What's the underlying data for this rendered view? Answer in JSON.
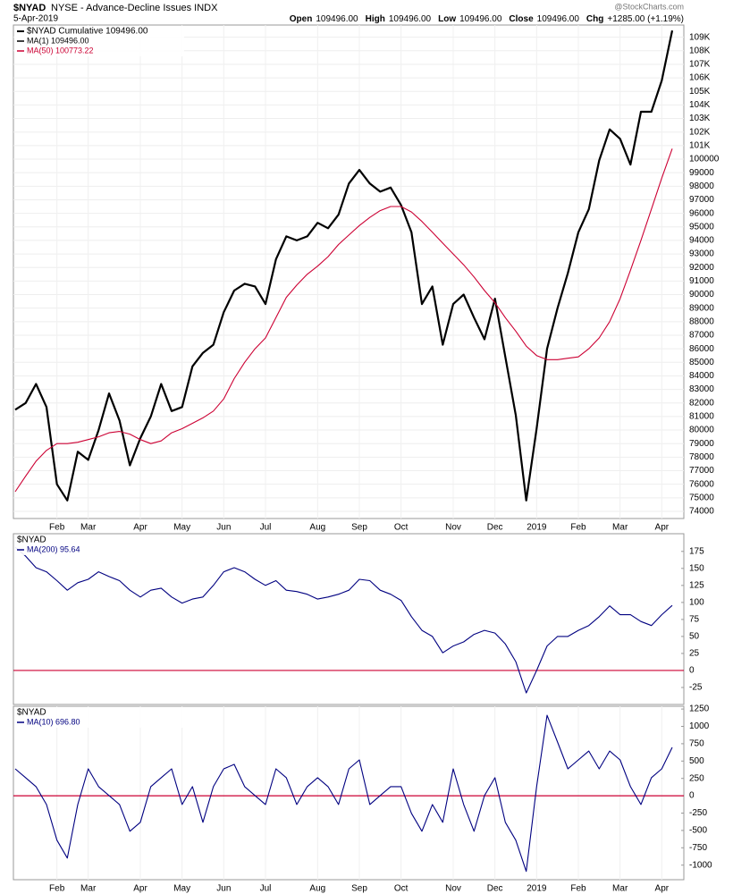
{
  "header": {
    "symbol": "$NYAD",
    "name": "NYSE - Advance-Decline Issues INDX",
    "date": "5-Apr-2019",
    "source": "@StockCharts.com",
    "quote": [
      {
        "label": "Open",
        "text": "109496.00"
      },
      {
        "label": "High",
        "text": "109496.00"
      },
      {
        "label": "Low",
        "text": "109496.00"
      },
      {
        "label": "Close",
        "text": "109496.00"
      },
      {
        "label": "Chg",
        "text": "+1285.00 (+1.19%)"
      }
    ]
  },
  "chart_data": [
    {
      "type": "line",
      "legend_title": "$NYAD Cumulative 109496.00",
      "grid": true,
      "categories": [
        null,
        null,
        null,
        null,
        "Feb",
        null,
        null,
        "Mar",
        null,
        null,
        null,
        null,
        "Apr",
        null,
        null,
        null,
        "May",
        null,
        null,
        null,
        "Jun",
        null,
        null,
        null,
        "Jul",
        null,
        null,
        null,
        null,
        "Aug",
        null,
        null,
        null,
        "Sep",
        null,
        null,
        null,
        "Oct",
        null,
        null,
        null,
        null,
        "Nov",
        null,
        null,
        null,
        "Dec",
        null,
        null,
        null,
        "2019",
        null,
        null,
        null,
        "Feb",
        null,
        null,
        null,
        "Mar",
        null,
        null,
        null,
        "Apr",
        null
      ],
      "series": [
        {
          "name": "MA(1) 109496.00",
          "color": "#000000",
          "values": [
            81500,
            82000,
            83400,
            81700,
            76000,
            74800,
            78400,
            77800,
            80000,
            82700,
            80700,
            77400,
            79400,
            81000,
            83400,
            81400,
            81700,
            84700,
            85700,
            86300,
            88700,
            90300,
            90800,
            90600,
            89300,
            92600,
            94300,
            94000,
            94300,
            95300,
            94900,
            95900,
            98200,
            99200,
            98200,
            97600,
            97900,
            96600,
            94600,
            89300,
            90600,
            86300,
            89300,
            90000,
            88300,
            86700,
            89700,
            85400,
            81100,
            74800,
            80100,
            86000,
            89000,
            91600,
            94600,
            96300,
            99900,
            102200,
            101500,
            99600,
            103500,
            103500,
            105800,
            109496
          ]
        },
        {
          "name": "MA(50) 100773.22",
          "color": "#cc0033",
          "values": [
            75450,
            76600,
            77700,
            78500,
            79000,
            79000,
            79100,
            79300,
            79500,
            79800,
            79900,
            79700,
            79300,
            79000,
            79200,
            79800,
            80100,
            80500,
            80900,
            81400,
            82300,
            83800,
            85000,
            86000,
            86800,
            88300,
            89800,
            90700,
            91500,
            92100,
            92800,
            93700,
            94400,
            95100,
            95700,
            96200,
            96500,
            96500,
            96100,
            95400,
            94600,
            93800,
            93000,
            92200,
            91300,
            90300,
            89400,
            88300,
            87300,
            86200,
            85500,
            85200,
            85200,
            85300,
            85400,
            86000,
            86800,
            88000,
            89700,
            91800,
            94000,
            96300,
            98600,
            100773.22
          ]
        }
      ],
      "ylim": [
        73470,
        109900
      ],
      "yticks": [
        74000,
        75000,
        76000,
        77000,
        78000,
        79000,
        80000,
        81000,
        82000,
        83000,
        84000,
        85000,
        86000,
        87000,
        88000,
        89000,
        90000,
        91000,
        92000,
        93000,
        94000,
        95000,
        96000,
        97000,
        98000,
        99000,
        100000,
        {
          "value": 101000,
          "label": "101K"
        },
        {
          "value": 102000,
          "label": "102K"
        },
        {
          "value": 103000,
          "label": "103K"
        },
        {
          "value": 104000,
          "label": "104K"
        },
        {
          "value": 105000,
          "label": "105K"
        },
        {
          "value": 106000,
          "label": "106K"
        },
        {
          "value": 107000,
          "label": "107K"
        },
        {
          "value": 108000,
          "label": "108K"
        },
        {
          "value": 109000,
          "label": "109K"
        }
      ]
    },
    {
      "type": "line",
      "legend_title": "$NYAD",
      "grid": false,
      "series": [
        {
          "name": "MA(200) 95.64",
          "color": "#000080",
          "values": [
            181,
            168,
            151,
            145,
            132,
            118,
            129,
            134,
            145,
            138,
            132,
            118,
            108,
            118,
            121,
            108,
            99,
            105,
            108,
            125,
            145,
            151,
            145,
            134,
            125,
            132,
            118,
            116,
            112,
            105,
            108,
            112,
            118,
            134,
            132,
            118,
            112,
            103,
            79,
            59,
            50,
            26,
            36,
            42,
            53,
            59,
            55,
            39,
            13,
            -33,
            0,
            36,
            50,
            50,
            59,
            66,
            79,
            95,
            82,
            82,
            72,
            66,
            82,
            95.64
          ]
        }
      ],
      "ylim": [
        -50,
        201
      ],
      "yticks": [
        -25,
        0,
        25,
        50,
        75,
        100,
        125,
        150,
        175
      ],
      "reference_line": {
        "value": 0,
        "color": "#cc0033"
      }
    },
    {
      "type": "line",
      "legend_title": "$NYAD",
      "grid": false,
      "categories": [
        null,
        null,
        null,
        null,
        "Feb",
        null,
        null,
        "Mar",
        null,
        null,
        null,
        null,
        "Apr",
        null,
        null,
        null,
        "May",
        null,
        null,
        null,
        "Jun",
        null,
        null,
        null,
        "Jul",
        null,
        null,
        null,
        null,
        "Aug",
        null,
        null,
        null,
        "Sep",
        null,
        null,
        null,
        "Oct",
        null,
        null,
        null,
        null,
        "Nov",
        null,
        null,
        null,
        "Dec",
        null,
        null,
        null,
        "2019",
        null,
        null,
        null,
        "Feb",
        null,
        null,
        null,
        "Mar",
        null,
        null,
        null,
        "Apr",
        null
      ],
      "series": [
        {
          "name": "MA(10) 696.80",
          "color": "#000080",
          "values": [
            388,
            260,
            131,
            -126,
            -640,
            -898,
            -126,
            388,
            131,
            3,
            -126,
            -512,
            -383,
            131,
            260,
            388,
            -126,
            131,
            -383,
            131,
            388,
            452,
            131,
            3,
            -126,
            388,
            260,
            -126,
            131,
            260,
            131,
            -126,
            388,
            517,
            -126,
            3,
            131,
            131,
            -254,
            -512,
            -126,
            -383,
            388,
            -126,
            -512,
            3,
            260,
            -383,
            -640,
            -1090,
            131,
            1160,
            774,
            388,
            517,
            645,
            388,
            645,
            517,
            131,
            -126,
            260,
            388,
            696.8
          ]
        }
      ],
      "ylim": [
        -1210,
        1290
      ],
      "yticks": [
        -1000,
        -750,
        -500,
        -250,
        0,
        250,
        500,
        750,
        1000,
        1250
      ],
      "reference_line": {
        "value": 0,
        "color": "#cc0033"
      }
    }
  ]
}
